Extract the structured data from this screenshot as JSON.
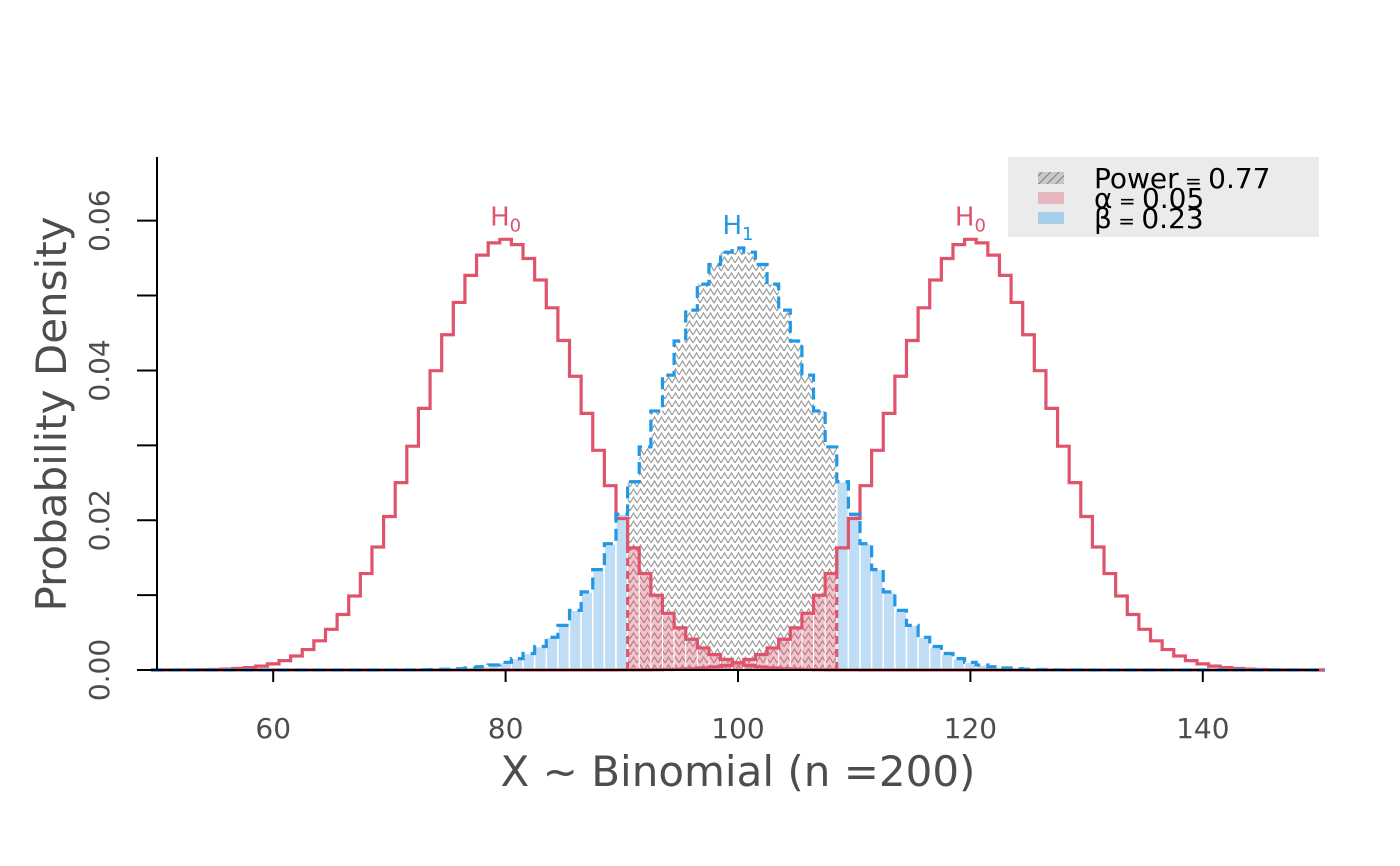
{
  "chart_data": {
    "type": "step",
    "xlabel": "X ~ Binomial (n =200)",
    "ylabel": "Probability Density",
    "xlim": [
      50,
      150
    ],
    "ylim": [
      0,
      0.0685
    ],
    "x_ticks": [
      60,
      80,
      100,
      120,
      140
    ],
    "x_tick_labels": [
      "60",
      "80",
      "100",
      "120",
      "140"
    ],
    "y_ticks": [
      0,
      0.01,
      0.02,
      0.03,
      0.04,
      0.05,
      0.06
    ],
    "y_tick_labels": [
      "0.00",
      "",
      "0.02",
      "",
      "0.04",
      "",
      "0.06"
    ],
    "distribution": "binomial",
    "n": 200,
    "series": [
      {
        "name": "H0",
        "p": 0.4,
        "color": "#DF536B",
        "dash": "solid"
      },
      {
        "name": "H0",
        "p": 0.6,
        "color": "#DF536B",
        "dash": "solid"
      },
      {
        "name": "H1",
        "p": 0.5,
        "color": "#2297E6",
        "dash": "dashed"
      }
    ],
    "critical_region": {
      "lower_max": 90,
      "upper_min": 109
    },
    "curve_labels": [
      {
        "base": "H",
        "sub": "0",
        "x": 80,
        "color": "#DF536B"
      },
      {
        "base": "H",
        "sub": "1",
        "x": 100,
        "color": "#2297E6"
      },
      {
        "base": "H",
        "sub": "0",
        "x": 120,
        "color": "#DF536B"
      }
    ],
    "legend": {
      "position": "top-right",
      "entries": [
        {
          "label": "Power",
          "value": "0.77",
          "fill": "hatch-gray"
        },
        {
          "label": "α",
          "value": "0.05",
          "fill": "#DF536B"
        },
        {
          "label": "β",
          "value": "0.23",
          "fill": "#2297E6"
        }
      ]
    },
    "colors": {
      "h0": "#DF536B",
      "h1": "#2297E6",
      "alpha_fill": "#DF536B",
      "beta_fill": "#BFDDF4",
      "power_fill": "#AAAAAA",
      "legend_bg": "#EBEBEB",
      "text": "#4D4D4D"
    },
    "grid": false
  }
}
